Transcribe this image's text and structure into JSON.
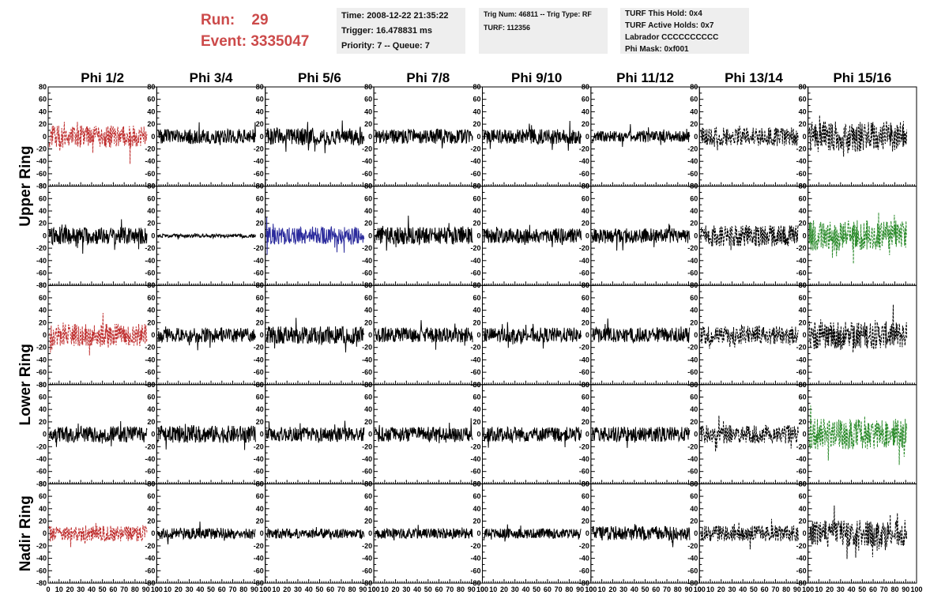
{
  "header": {
    "run_label": "Run:",
    "run_value": "29",
    "event_label": "Event:",
    "event_value": "3335047",
    "time_box": [
      "Time: 2008-12-22 21:35:22",
      "Trigger: 16.478831 ms",
      "Priority: 7 -- Queue: 7"
    ],
    "trig_box": [
      "Trig Num: 46811 -- Trig Type: RF",
      "",
      "TURF: 112356"
    ],
    "turf_box": [
      "TURF This Hold: 0x4",
      "TURF Active Holds: 0x7",
      "Labrador CCCCCCCCCC",
      "Phi Mask: 0xf001"
    ]
  },
  "colors": {
    "red": "#c03030",
    "black": "#000000",
    "blue": "#2a2a9c",
    "green": "#2a8a2a",
    "header_text": "#cc4a4a",
    "box_bg": "#eeeeee"
  },
  "chart_data": {
    "type": "line",
    "columns": [
      "Phi 1/2",
      "Phi 3/4",
      "Phi 5/6",
      "Phi 7/8",
      "Phi 9/10",
      "Phi 11/12",
      "Phi 13/14",
      "Phi 15/16"
    ],
    "ring_labels": [
      "Upper Ring",
      "Lower Ring",
      "Nadir Ring"
    ],
    "xlim": [
      0,
      100
    ],
    "ylim": [
      -80,
      80
    ],
    "xticks": [
      "0",
      "10",
      "20",
      "30",
      "40",
      "50",
      "60",
      "70",
      "80",
      "90",
      "100"
    ],
    "yticks": [
      "80",
      "60",
      "40",
      "20",
      "0",
      "-20",
      "-40",
      "-60",
      "-80"
    ],
    "panels": [
      [
        {
          "color": "red",
          "dashed": true,
          "amp": 18,
          "seed": 11
        },
        {
          "color": "black",
          "dashed": false,
          "amp": 12,
          "seed": 12
        },
        {
          "color": "black",
          "dashed": false,
          "amp": 14,
          "seed": 13
        },
        {
          "color": "black",
          "dashed": false,
          "amp": 12,
          "seed": 14
        },
        {
          "color": "black",
          "dashed": false,
          "amp": 12,
          "seed": 15
        },
        {
          "color": "black",
          "dashed": false,
          "amp": 9,
          "seed": 16
        },
        {
          "color": "black",
          "dashed": true,
          "amp": 15,
          "seed": 17
        },
        {
          "color": "black",
          "dashed": true,
          "amp": 25,
          "seed": 18
        }
      ],
      [
        {
          "color": "black",
          "dashed": false,
          "amp": 14,
          "seed": 21
        },
        {
          "color": "black",
          "dashed": false,
          "amp": 3,
          "seed": 22
        },
        {
          "color": "blue",
          "dashed": false,
          "amp": 14,
          "seed": 23
        },
        {
          "color": "black",
          "dashed": false,
          "amp": 14,
          "seed": 24
        },
        {
          "color": "black",
          "dashed": false,
          "amp": 12,
          "seed": 25
        },
        {
          "color": "black",
          "dashed": false,
          "amp": 12,
          "seed": 26
        },
        {
          "color": "black",
          "dashed": true,
          "amp": 17,
          "seed": 27
        },
        {
          "color": "green",
          "dashed": true,
          "amp": 25,
          "seed": 28
        }
      ],
      [
        {
          "color": "red",
          "dashed": true,
          "amp": 18,
          "seed": 31
        },
        {
          "color": "black",
          "dashed": false,
          "amp": 12,
          "seed": 32
        },
        {
          "color": "black",
          "dashed": false,
          "amp": 14,
          "seed": 33
        },
        {
          "color": "black",
          "dashed": false,
          "amp": 12,
          "seed": 34
        },
        {
          "color": "black",
          "dashed": false,
          "amp": 12,
          "seed": 35
        },
        {
          "color": "black",
          "dashed": false,
          "amp": 12,
          "seed": 36
        },
        {
          "color": "black",
          "dashed": true,
          "amp": 15,
          "seed": 37
        },
        {
          "color": "black",
          "dashed": true,
          "amp": 22,
          "seed": 38
        }
      ],
      [
        {
          "color": "black",
          "dashed": false,
          "amp": 13,
          "seed": 41
        },
        {
          "color": "black",
          "dashed": false,
          "amp": 14,
          "seed": 42
        },
        {
          "color": "black",
          "dashed": false,
          "amp": 12,
          "seed": 43
        },
        {
          "color": "black",
          "dashed": false,
          "amp": 12,
          "seed": 44
        },
        {
          "color": "black",
          "dashed": false,
          "amp": 12,
          "seed": 45
        },
        {
          "color": "black",
          "dashed": false,
          "amp": 12,
          "seed": 46
        },
        {
          "color": "black",
          "dashed": true,
          "amp": 15,
          "seed": 47
        },
        {
          "color": "green",
          "dashed": true,
          "amp": 25,
          "seed": 48
        }
      ],
      [
        {
          "color": "red",
          "dashed": true,
          "amp": 13,
          "seed": 51
        },
        {
          "color": "black",
          "dashed": false,
          "amp": 9,
          "seed": 52
        },
        {
          "color": "black",
          "dashed": false,
          "amp": 8,
          "seed": 53
        },
        {
          "color": "black",
          "dashed": false,
          "amp": 8,
          "seed": 54
        },
        {
          "color": "black",
          "dashed": false,
          "amp": 8,
          "seed": 55
        },
        {
          "color": "black",
          "dashed": false,
          "amp": 12,
          "seed": 56
        },
        {
          "color": "black",
          "dashed": true,
          "amp": 13,
          "seed": 57
        },
        {
          "color": "black",
          "dashed": true,
          "amp": 22,
          "seed": 58
        }
      ]
    ]
  }
}
